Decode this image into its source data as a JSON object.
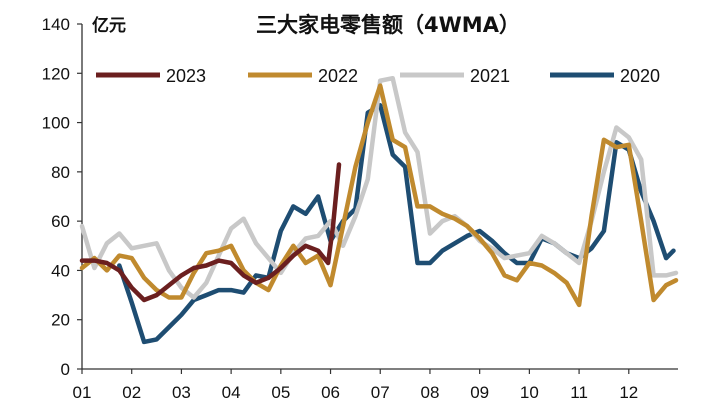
{
  "chart_data": {
    "type": "line",
    "title": "三大家电零售额（4WMA）",
    "ylabel": "亿元",
    "xlabel": "",
    "ylim": [
      0,
      140
    ],
    "yticks": [
      0,
      20,
      40,
      60,
      80,
      100,
      120,
      140
    ],
    "xlim": [
      1,
      12.99
    ],
    "xticks": [
      1,
      2,
      3,
      4,
      5,
      6,
      7,
      8,
      9,
      10,
      11,
      12
    ],
    "xtick_labels": [
      "01",
      "02",
      "03",
      "04",
      "05",
      "06",
      "07",
      "08",
      "09",
      "10",
      "11",
      "12"
    ],
    "grid": false,
    "legend_position": "top",
    "series": [
      {
        "name": "2023",
        "color": "#6b1f1f",
        "x": [
          1.0,
          1.25,
          1.5,
          1.75,
          2.0,
          2.25,
          2.5,
          2.75,
          3.0,
          3.25,
          3.5,
          3.75,
          4.0,
          4.25,
          4.5,
          4.75,
          5.0,
          5.25,
          5.5,
          5.75,
          5.95,
          6.05,
          6.17
        ],
        "y": [
          44,
          44,
          43,
          40,
          33,
          28,
          30,
          34,
          38,
          41,
          42,
          44,
          43,
          38,
          35,
          37,
          41,
          46,
          50,
          48,
          43,
          58,
          83
        ]
      },
      {
        "name": "2022",
        "color": "#c08a2e",
        "x": [
          1.0,
          1.25,
          1.5,
          1.75,
          2.0,
          2.25,
          2.5,
          2.75,
          3.0,
          3.25,
          3.5,
          3.75,
          4.0,
          4.25,
          4.5,
          4.75,
          5.0,
          5.25,
          5.5,
          5.75,
          6.0,
          6.25,
          6.5,
          6.75,
          7.0,
          7.25,
          7.5,
          7.75,
          8.0,
          8.25,
          8.5,
          8.75,
          9.0,
          9.25,
          9.5,
          9.75,
          10.0,
          10.25,
          10.5,
          10.75,
          11.0,
          11.25,
          11.5,
          11.75,
          12.0,
          12.25,
          12.5,
          12.75,
          12.95
        ],
        "y": [
          41,
          45,
          40,
          46,
          45,
          37,
          32,
          29,
          29,
          39,
          47,
          48,
          50,
          40,
          35,
          32,
          42,
          50,
          43,
          46,
          34,
          58,
          82,
          100,
          115,
          93,
          90,
          66,
          66,
          63,
          61,
          58,
          53,
          47,
          38,
          36,
          43,
          42,
          39,
          35,
          26,
          62,
          93,
          90,
          91,
          60,
          28,
          34,
          36
        ]
      },
      {
        "name": "2021",
        "color": "#c8c8c8",
        "x": [
          1.0,
          1.25,
          1.5,
          1.75,
          2.0,
          2.25,
          2.5,
          2.75,
          3.0,
          3.25,
          3.5,
          3.75,
          4.0,
          4.25,
          4.5,
          4.75,
          5.0,
          5.25,
          5.5,
          5.75,
          6.0,
          6.25,
          6.5,
          6.75,
          7.0,
          7.25,
          7.5,
          7.75,
          8.0,
          8.25,
          8.5,
          8.75,
          9.0,
          9.25,
          9.5,
          9.75,
          10.0,
          10.25,
          10.5,
          10.75,
          11.0,
          11.25,
          11.5,
          11.75,
          12.0,
          12.25,
          12.5,
          12.75,
          12.95
        ],
        "y": [
          58,
          41,
          51,
          55,
          49,
          50,
          51,
          40,
          33,
          29,
          35,
          46,
          57,
          61,
          51,
          45,
          39,
          47,
          53,
          54,
          60,
          50,
          62,
          77,
          117,
          118,
          96,
          88,
          55,
          60,
          62,
          58,
          52,
          49,
          45,
          46,
          47,
          54,
          51,
          47,
          43,
          60,
          80,
          98,
          94,
          85,
          38,
          38,
          39
        ]
      },
      {
        "name": "2020",
        "color": "#1e4d72",
        "x": [
          1.75,
          2.0,
          2.25,
          2.5,
          2.75,
          3.0,
          3.25,
          3.5,
          3.75,
          4.0,
          4.25,
          4.5,
          4.75,
          5.0,
          5.25,
          5.5,
          5.75,
          6.0,
          6.25,
          6.5,
          6.75,
          7.0,
          7.25,
          7.5,
          7.75,
          8.0,
          8.25,
          8.5,
          8.75,
          9.0,
          9.25,
          9.5,
          9.75,
          10.0,
          10.25,
          10.5,
          10.75,
          11.0,
          11.25,
          11.5,
          11.75,
          12.0,
          12.25,
          12.5,
          12.75,
          12.9
        ],
        "y": [
          42,
          27,
          11,
          12,
          17,
          22,
          28,
          30,
          32,
          32,
          31,
          38,
          37,
          56,
          66,
          63,
          70,
          52,
          60,
          65,
          104,
          107,
          87,
          82,
          43,
          43,
          48,
          51,
          54,
          56,
          52,
          47,
          43,
          43,
          53,
          51,
          47,
          45,
          49,
          56,
          92,
          89,
          72,
          60,
          45,
          48
        ]
      }
    ]
  }
}
